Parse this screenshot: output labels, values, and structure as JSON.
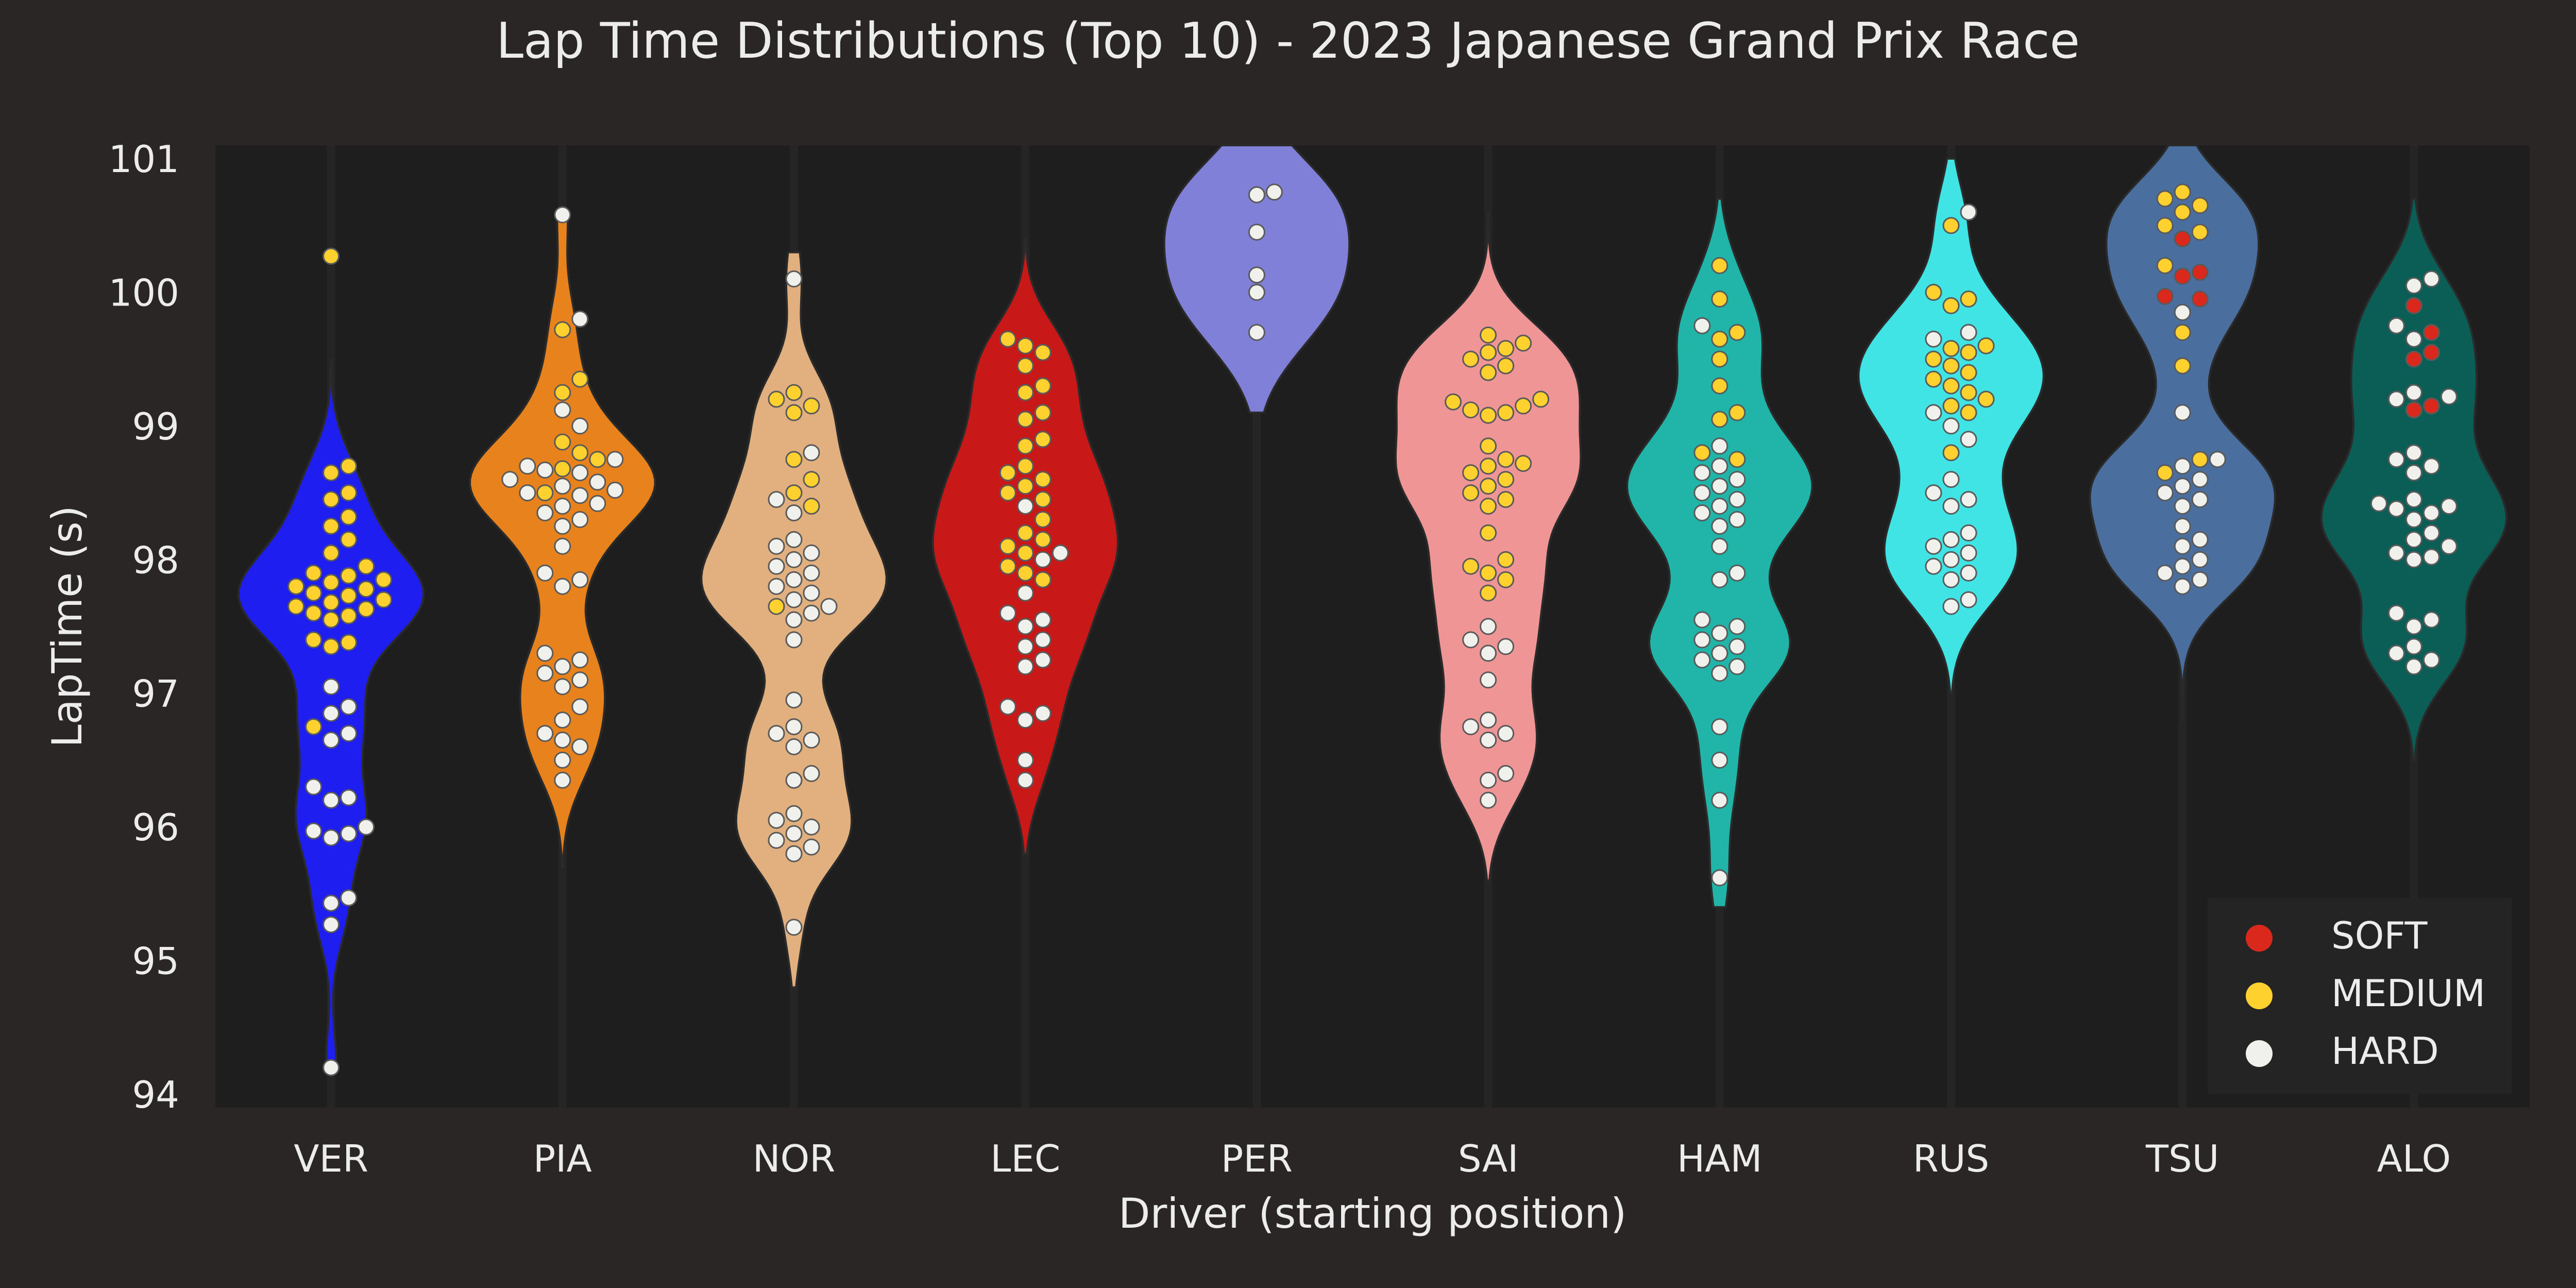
{
  "chart_data": {
    "type": "violin",
    "title": "Lap Time Distributions (Top 10) - 2023 Japanese Grand Prix Race",
    "xlabel": "Driver (starting position)",
    "ylabel": "LapTime (s)",
    "ylim": [
      93.9,
      101.1
    ],
    "yticks": [
      94,
      95,
      96,
      97,
      98,
      99,
      100,
      101
    ],
    "grid": false,
    "legend_position": "bottom-right",
    "legend": [
      {
        "label": "SOFT",
        "color": "#da291c"
      },
      {
        "label": "MEDIUM",
        "color": "#ffd12e"
      },
      {
        "label": "HARD",
        "color": "#f0f0ec"
      }
    ],
    "categories": [
      "VER",
      "PIA",
      "NOR",
      "LEC",
      "PER",
      "SAI",
      "HAM",
      "RUS",
      "TSU",
      "ALO"
    ],
    "violins": [
      {
        "driver": "VER",
        "color": "#1e1ef0",
        "range": [
          94.2,
          99.5
        ],
        "widest_at": 97.8
      },
      {
        "driver": "PIA",
        "color": "#e8821c",
        "range": [
          95.7,
          100.6
        ],
        "widest_at": 98.6
      },
      {
        "driver": "NOR",
        "color": "#e2b07e",
        "range": [
          94.8,
          100.3
        ],
        "widest_at": 97.9
      },
      {
        "driver": "LEC",
        "color": "#c91818",
        "range": [
          95.8,
          100.4
        ],
        "widest_at": 98.5
      },
      {
        "driver": "PER",
        "color": "#8080d8",
        "range": [
          99.1,
          101.1
        ],
        "widest_at": 100.4
      },
      {
        "driver": "SAI",
        "color": "#f09595",
        "range": [
          95.6,
          100.6
        ],
        "widest_at": 99.0
      },
      {
        "driver": "HAM",
        "color": "#20b5a8",
        "range": [
          95.4,
          100.7
        ],
        "widest_at": 98.4
      },
      {
        "driver": "RUS",
        "color": "#40e4e4",
        "range": [
          97.0,
          101.0
        ],
        "widest_at": 98.9
      },
      {
        "driver": "TSU",
        "color": "#4a6e9e",
        "range": [
          96.8,
          101.1
        ],
        "widest_at": 99.0
      },
      {
        "driver": "ALO",
        "color": "#0b5e55",
        "range": [
          96.5,
          100.7
        ],
        "widest_at": 98.4
      }
    ],
    "series": [
      {
        "driver": "VER",
        "SOFT": [],
        "MEDIUM": [
          100.27,
          98.7,
          98.65,
          98.5,
          98.45,
          98.32,
          98.25,
          98.15,
          98.05,
          97.95,
          97.9,
          97.88,
          97.85,
          97.83,
          97.8,
          97.78,
          97.75,
          97.73,
          97.7,
          97.68,
          97.65,
          97.63,
          97.6,
          97.58,
          97.55,
          97.4,
          97.38,
          97.35,
          96.75
        ],
        "HARD": [
          97.05,
          96.9,
          96.85,
          96.7,
          96.65,
          96.3,
          96.22,
          96.2,
          96.0,
          95.97,
          95.95,
          95.92,
          95.47,
          95.43,
          95.27,
          94.2
        ]
      },
      {
        "driver": "PIA",
        "SOFT": [],
        "MEDIUM": [
          99.72,
          99.35,
          99.25,
          98.88,
          98.8,
          98.75,
          98.68,
          98.5
        ],
        "HARD": [
          100.58,
          99.8,
          99.12,
          99.0,
          98.75,
          98.7,
          98.67,
          98.65,
          98.6,
          98.58,
          98.55,
          98.52,
          98.5,
          98.48,
          98.42,
          98.4,
          98.35,
          98.3,
          98.25,
          98.1,
          97.9,
          97.85,
          97.8,
          97.3,
          97.25,
          97.2,
          97.15,
          97.1,
          97.05,
          96.9,
          96.8,
          96.7,
          96.65,
          96.6,
          96.5,
          96.35
        ]
      },
      {
        "driver": "NOR",
        "SOFT": [],
        "MEDIUM": [
          99.25,
          99.2,
          99.15,
          99.1,
          98.75,
          98.6,
          98.5,
          98.4,
          97.65
        ],
        "HARD": [
          100.1,
          98.8,
          98.45,
          98.35,
          98.15,
          98.1,
          98.05,
          98.0,
          97.95,
          97.9,
          97.85,
          97.8,
          97.75,
          97.7,
          97.65,
          97.6,
          97.55,
          97.4,
          96.95,
          96.75,
          96.7,
          96.65,
          96.6,
          96.4,
          96.35,
          96.1,
          96.05,
          96.0,
          95.95,
          95.9,
          95.85,
          95.8,
          95.25
        ]
      },
      {
        "driver": "LEC",
        "SOFT": [],
        "MEDIUM": [
          99.65,
          99.6,
          99.55,
          99.45,
          99.3,
          99.25,
          99.1,
          99.05,
          98.9,
          98.85,
          98.7,
          98.65,
          98.6,
          98.55,
          98.5,
          98.45,
          98.3,
          98.2,
          98.15,
          98.1,
          98.05,
          97.95,
          97.9,
          97.85
        ],
        "HARD": [
          98.4,
          98.05,
          98.0,
          97.75,
          97.6,
          97.55,
          97.5,
          97.4,
          97.35,
          97.25,
          97.2,
          96.9,
          96.85,
          96.8,
          96.5,
          96.35
        ]
      },
      {
        "driver": "PER",
        "SOFT": [],
        "MEDIUM": [],
        "HARD": [
          100.75,
          100.73,
          100.45,
          100.13,
          100.0,
          99.7
        ]
      },
      {
        "driver": "SAI",
        "SOFT": [],
        "MEDIUM": [
          99.68,
          99.62,
          99.58,
          99.55,
          99.5,
          99.45,
          99.4,
          99.2,
          99.18,
          99.15,
          99.12,
          99.1,
          99.08,
          98.85,
          98.75,
          98.72,
          98.7,
          98.65,
          98.6,
          98.55,
          98.5,
          98.45,
          98.4,
          98.2,
          98.0,
          97.95,
          97.9,
          97.85,
          97.75
        ],
        "HARD": [
          97.5,
          97.4,
          97.35,
          97.3,
          97.1,
          96.8,
          96.75,
          96.7,
          96.65,
          96.4,
          96.35,
          96.2
        ]
      },
      {
        "driver": "HAM",
        "SOFT": [],
        "MEDIUM": [
          100.2,
          99.95,
          99.7,
          99.65,
          99.5,
          99.3,
          99.1,
          99.05,
          98.8,
          98.75
        ],
        "HARD": [
          99.75,
          98.85,
          98.7,
          98.65,
          98.6,
          98.55,
          98.5,
          98.45,
          98.4,
          98.35,
          98.3,
          98.25,
          98.1,
          97.9,
          97.85,
          97.55,
          97.5,
          97.45,
          97.4,
          97.35,
          97.3,
          97.25,
          97.2,
          97.15,
          96.75,
          96.5,
          96.2,
          95.62
        ]
      },
      {
        "driver": "RUS",
        "SOFT": [],
        "MEDIUM": [
          100.5,
          100.0,
          99.95,
          99.9,
          99.6,
          99.58,
          99.55,
          99.5,
          99.45,
          99.4,
          99.35,
          99.3,
          99.25,
          99.2,
          99.15,
          99.1,
          98.8
        ],
        "HARD": [
          100.6,
          99.7,
          99.65,
          99.1,
          99.0,
          98.9,
          98.6,
          98.5,
          98.45,
          98.4,
          98.2,
          98.15,
          98.1,
          98.05,
          98.0,
          97.95,
          97.9,
          97.85,
          97.7,
          97.65
        ]
      },
      {
        "driver": "TSU",
        "SOFT": [
          100.4,
          100.15,
          100.12,
          99.97,
          99.95
        ],
        "MEDIUM": [
          100.75,
          100.7,
          100.65,
          100.6,
          100.5,
          100.45,
          100.2,
          99.7,
          99.45,
          98.75,
          98.65
        ],
        "HARD": [
          99.85,
          99.1,
          98.75,
          98.7,
          98.6,
          98.55,
          98.5,
          98.45,
          98.4,
          98.25,
          98.15,
          98.1,
          98.0,
          97.95,
          97.9,
          97.85,
          97.8
        ]
      },
      {
        "driver": "ALO",
        "SOFT": [
          99.9,
          99.7,
          99.55,
          99.5,
          99.15,
          99.12
        ],
        "MEDIUM": [],
        "HARD": [
          100.1,
          100.05,
          99.75,
          99.65,
          99.25,
          99.22,
          99.2,
          98.8,
          98.75,
          98.7,
          98.65,
          98.45,
          98.42,
          98.4,
          98.38,
          98.35,
          98.3,
          98.2,
          98.15,
          98.1,
          98.05,
          98.02,
          98.0,
          97.6,
          97.55,
          97.5,
          97.35,
          97.3,
          97.25,
          97.2
        ]
      }
    ]
  }
}
